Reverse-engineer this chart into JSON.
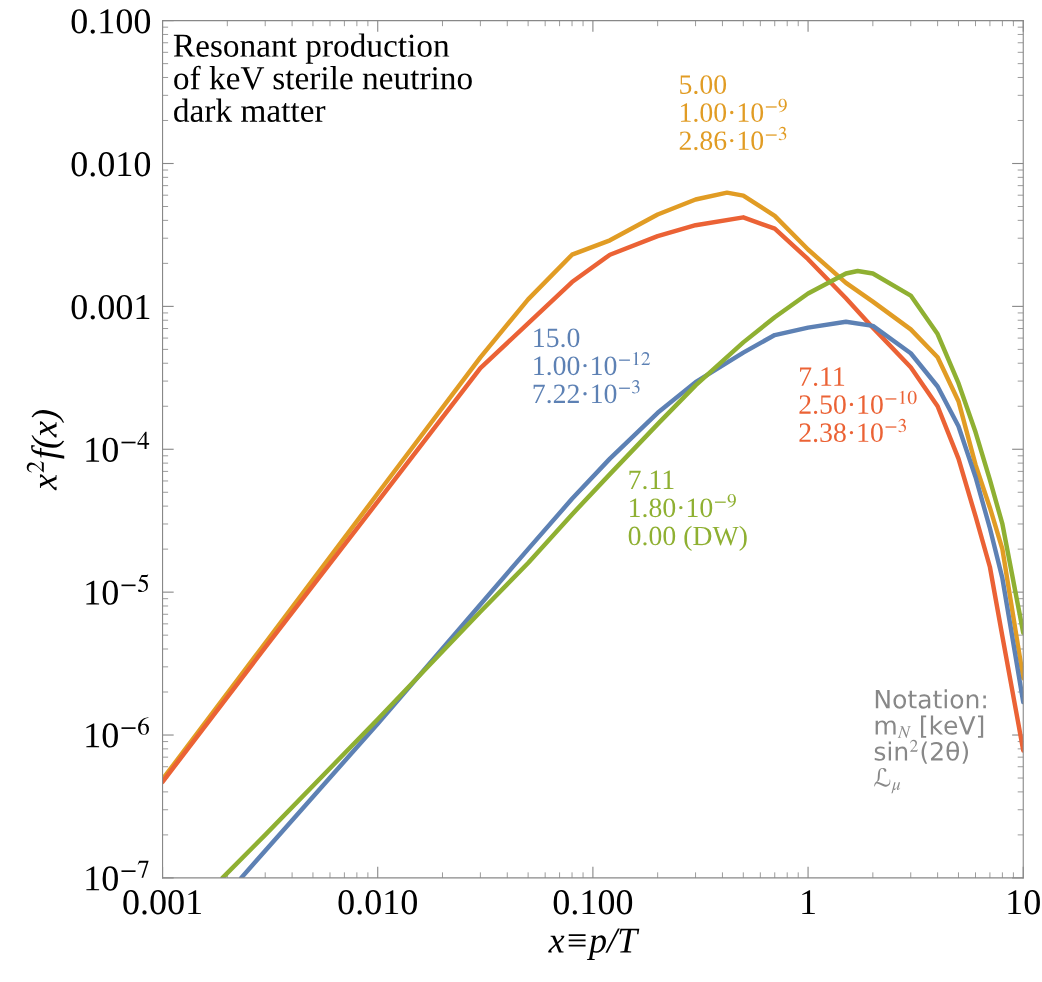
{
  "chart_data": {
    "type": "line",
    "title": "Resonant production\nof keV sterile neutrino\ndark matter",
    "xlabel": "x≡p/T",
    "ylabel": "x$^{2}$f(x)",
    "log": "xy",
    "grid": false,
    "legend": false,
    "xlim": [
      0.001,
      10
    ],
    "ylim": [
      1e-07,
      0.1
    ],
    "xticks": [
      {
        "value": 0.001,
        "label": "0.001"
      },
      {
        "value": 0.01,
        "label": "0.010"
      },
      {
        "value": 0.1,
        "label": "0.100"
      },
      1,
      10
    ],
    "yticks": [
      {
        "value": 1e-07,
        "label": "10$^{−7}$"
      },
      {
        "value": 1e-06,
        "label": "10$^{−6}$"
      },
      {
        "value": 1e-05,
        "label": "10$^{−5}$"
      },
      {
        "value": 0.0001,
        "label": "10$^{−4}$"
      },
      {
        "value": 0.001,
        "label": "0.001"
      },
      {
        "value": 0.01,
        "label": "0.010"
      },
      {
        "value": 0.1,
        "label": "0.100"
      }
    ],
    "annotations": [
      "Notation:\nm$_{N}$ [keV]\nsin$^{2}$(2θ)\nℒ$_{μ}$"
    ],
    "series": [
      {
        "name": "5.00\n1.00·10$^{−9}$\n2.86·10$^{−3}$",
        "color": "#e19c24",
        "x": [
          0.001,
          0.003,
          0.01,
          0.03,
          0.05,
          0.08,
          0.12,
          0.2,
          0.3,
          0.42,
          0.5,
          0.7,
          1,
          1.5,
          2,
          3,
          4,
          5,
          6,
          7,
          8,
          10
        ],
        "values": [
          4.9e-07,
          4.4e-06,
          4.9e-05,
          0.00044,
          0.00112,
          0.0023,
          0.0029,
          0.0044,
          0.0056,
          0.00625,
          0.00596,
          0.0043,
          0.0025,
          0.00146,
          0.00108,
          0.00069,
          0.00044,
          0.000217,
          7.8e-05,
          3.9e-05,
          2e-05,
          2.5e-06
        ]
      },
      {
        "name": "7.11\n2.50·10$^{−10}$\n2.38·10$^{−3}$",
        "color": "#eb6235",
        "x": [
          0.001,
          0.003,
          0.01,
          0.03,
          0.05,
          0.08,
          0.12,
          0.2,
          0.3,
          0.5,
          0.7,
          1,
          1.5,
          2,
          3,
          4,
          5,
          6,
          7,
          8,
          10
        ],
        "values": [
          4.7e-07,
          4.1e-06,
          4.3e-05,
          0.00037,
          0.00076,
          0.00148,
          0.0023,
          0.0031,
          0.0037,
          0.0042,
          0.0035,
          0.00214,
          0.00114,
          0.00071,
          0.000375,
          0.0002,
          8.6e-05,
          3.4e-05,
          1.5e-05,
          4.9e-06,
          7.8e-07
        ]
      },
      {
        "name": "15.0\n1.00·10$^{−12}$\n7.22·10$^{−3}$",
        "color": "#5d81b4",
        "x": [
          0.00232,
          0.003,
          0.01,
          0.03,
          0.05,
          0.08,
          0.12,
          0.2,
          0.3,
          0.5,
          0.7,
          1,
          1.5,
          2,
          3,
          4,
          5,
          6,
          7,
          8,
          10
        ],
        "values": [
          1e-07,
          1.55e-07,
          1.2e-06,
          8.2e-06,
          2e-05,
          4.5e-05,
          8.6e-05,
          0.00018,
          0.000295,
          0.000475,
          0.00063,
          0.00071,
          0.00078,
          0.00073,
          0.00047,
          0.000275,
          0.000145,
          6.4e-05,
          2.8e-05,
          1.25e-05,
          1.7e-06
        ]
      },
      {
        "name": "7.11\n1.80·10$^{−9}$\n0.00 (DW)",
        "color": "#8fb032",
        "x": [
          0.0019,
          0.003,
          0.01,
          0.03,
          0.05,
          0.08,
          0.12,
          0.2,
          0.3,
          0.5,
          0.7,
          1,
          1.5,
          1.7,
          2,
          3,
          4,
          5,
          6,
          7,
          8,
          10
        ],
        "values": [
          1e-07,
          2e-07,
          1.29e-06,
          7.3e-06,
          1.6e-05,
          3.5e-05,
          6.7e-05,
          0.00015,
          0.00028,
          0.00056,
          0.00084,
          0.00123,
          0.0017,
          0.00177,
          0.0017,
          0.00119,
          0.00064,
          0.00029,
          0.000132,
          6.1e-05,
          3e-05,
          5.2e-06
        ]
      }
    ]
  }
}
